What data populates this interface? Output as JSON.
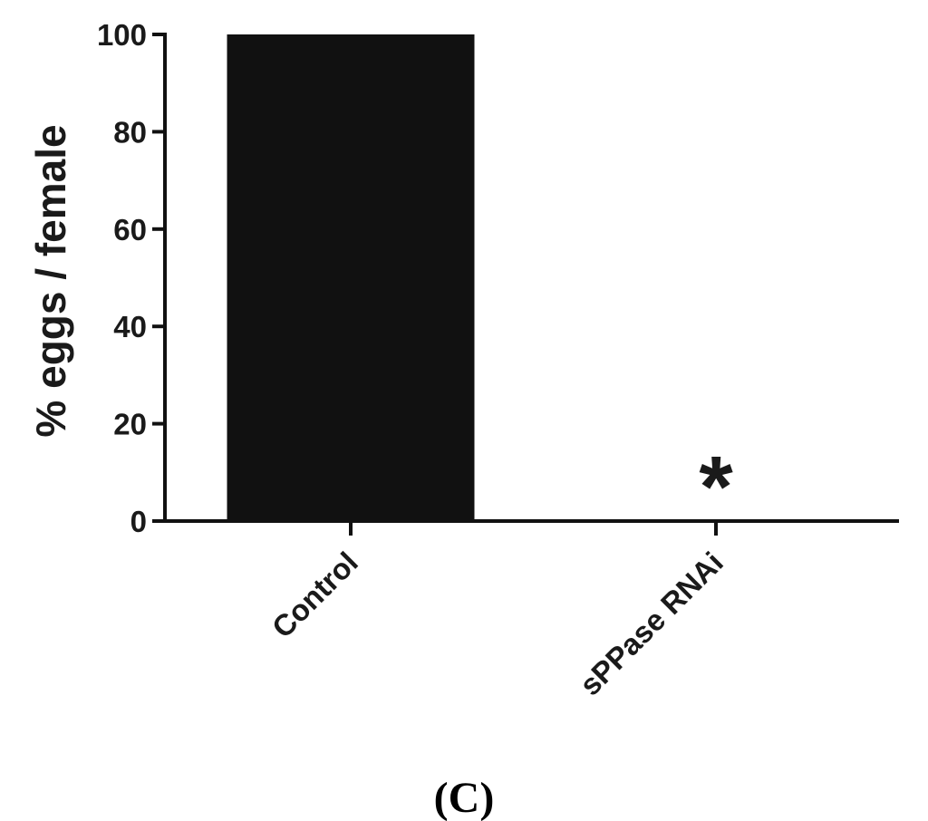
{
  "chart_data": {
    "type": "bar",
    "categories": [
      "Control",
      "sPPase RNAi"
    ],
    "values": [
      100,
      0
    ],
    "title": "",
    "xlabel": "",
    "ylabel": "% eggs / female",
    "ylim": [
      0,
      100
    ],
    "yticks": [
      0,
      20,
      40,
      60,
      80,
      100
    ],
    "grid": false,
    "bar_color": "#111111",
    "annotations": [
      {
        "category": "sPPase RNAi",
        "text": "*"
      }
    ]
  },
  "panel_label": "(C)"
}
